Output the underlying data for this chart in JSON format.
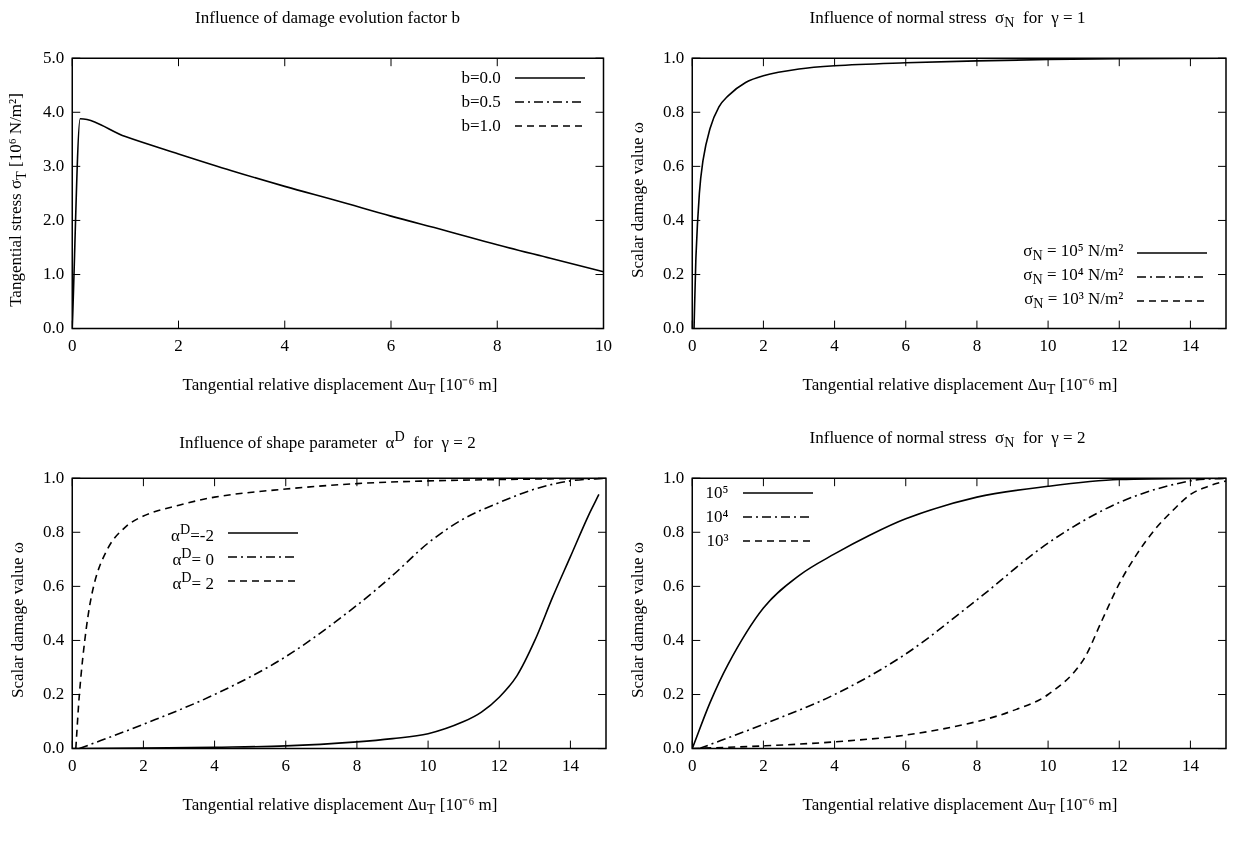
{
  "chart_data": [
    {
      "type": "line",
      "title": "Influence of damage evolution factor b",
      "xlabel": "Tangential relative displacement Δu$_{T}$ [10⁻⁶ m]",
      "ylabel": "Tangential stress σ$_{T}$ [10⁶ N/m²]",
      "xlim": [
        0,
        10
      ],
      "xticks": [
        0,
        2,
        4,
        6,
        8,
        10
      ],
      "ylim": [
        0,
        5
      ],
      "yticks": [
        {
          "value": 0,
          "label": "0.0"
        },
        {
          "value": 1,
          "label": "1.0"
        },
        {
          "value": 2,
          "label": "2.0"
        },
        {
          "value": 3,
          "label": "3.0"
        },
        {
          "value": 4,
          "label": "4.0"
        },
        {
          "value": 5,
          "label": "5.0"
        }
      ],
      "grid": false,
      "legend": "top right",
      "x": [
        0,
        0.15,
        1,
        2,
        3,
        4,
        5,
        6,
        7,
        8,
        9,
        10
      ],
      "series": [
        {
          "name": "b=0.0",
          "color": "#000000",
          "line_style": "solid",
          "values": [
            0,
            3.88,
            3.55,
            3.23,
            2.92,
            2.63,
            2.36,
            2.08,
            1.82,
            1.55,
            1.3,
            1.05
          ]
        },
        {
          "name": "b=0.5",
          "color": "#000000",
          "line_style": "dashdot",
          "values": [
            null,
            null,
            null,
            null,
            null,
            null,
            null,
            null,
            null,
            null,
            null,
            null
          ]
        },
        {
          "name": "b=1.0",
          "color": "#000000",
          "line_style": "dashed",
          "values": [
            null,
            null,
            null,
            null,
            null,
            null,
            null,
            null,
            null,
            null,
            null,
            null
          ]
        }
      ]
    },
    {
      "type": "line",
      "title": "Influence of normal stress  σ$_{N}$  for  γ = 1",
      "xlabel": "Tangential relative displacement Δu$_{T}$ [10⁻⁶ m]",
      "ylabel": "Scalar damage value ω",
      "xlim": [
        0,
        15
      ],
      "xticks": [
        0,
        2,
        4,
        6,
        8,
        10,
        12,
        14
      ],
      "ylim": [
        0,
        1
      ],
      "yticks": [
        {
          "value": 0,
          "label": "0.0"
        },
        {
          "value": 0.2,
          "label": "0.2"
        },
        {
          "value": 0.4,
          "label": "0.4"
        },
        {
          "value": 0.6,
          "label": "0.6"
        },
        {
          "value": 0.8,
          "label": "0.8"
        },
        {
          "value": 1,
          "label": "1.0"
        }
      ],
      "grid": false,
      "legend": "bottom right",
      "x": [
        0.05,
        0.1,
        0.2,
        0.3,
        0.5,
        0.75,
        1,
        1.5,
        2,
        3,
        4,
        6,
        8,
        10,
        12,
        15
      ],
      "series": [
        {
          "name": "σ$_{N}$ = 10⁵ N/m²",
          "color": "#000000",
          "line_style": "solid",
          "values": [
            0,
            0.25,
            0.5,
            0.62,
            0.74,
            0.82,
            0.86,
            0.91,
            0.935,
            0.96,
            0.972,
            0.983,
            0.99,
            0.995,
            0.998,
            1
          ]
        },
        {
          "name": "σ$_{N}$ = 10⁴ N/m²",
          "color": "#000000",
          "line_style": "dashdot",
          "values": [
            null,
            null,
            null,
            null,
            null,
            null,
            null,
            null,
            null,
            null,
            null,
            null,
            null,
            null,
            null,
            null
          ]
        },
        {
          "name": "σ$_{N}$ = 10³ N/m²",
          "color": "#000000",
          "line_style": "dashed",
          "values": [
            null,
            null,
            null,
            null,
            null,
            null,
            null,
            null,
            null,
            null,
            null,
            null,
            null,
            null,
            null,
            null
          ]
        }
      ]
    },
    {
      "type": "line",
      "title": "Influence of shape parameter  α$^{D}$  for  γ = 2",
      "xlabel": "Tangential relative displacement Δu$_{T}$ [10⁻⁶ m]",
      "ylabel": "Scalar damage value ω",
      "xlim": [
        0,
        15
      ],
      "xticks": [
        0,
        2,
        4,
        6,
        8,
        10,
        12,
        14
      ],
      "ylim": [
        0,
        1
      ],
      "yticks": [
        {
          "value": 0,
          "label": "0.0"
        },
        {
          "value": 0.2,
          "label": "0.2"
        },
        {
          "value": 0.4,
          "label": "0.4"
        },
        {
          "value": 0.6,
          "label": "0.6"
        },
        {
          "value": 0.8,
          "label": "0.8"
        },
        {
          "value": 1,
          "label": "1.0"
        }
      ],
      "grid": false,
      "legend": "top left",
      "series": [
        {
          "name": "α$^{D}$=-2",
          "color": "#000000",
          "line_style": "solid",
          "x": [
            0,
            2,
            4,
            6,
            8,
            9,
            10,
            11,
            11.5,
            12,
            12.5,
            13,
            13.5,
            14,
            14.5,
            14.8
          ],
          "values": [
            0,
            0.002,
            0.005,
            0.01,
            0.025,
            0.037,
            0.055,
            0.1,
            0.135,
            0.19,
            0.27,
            0.4,
            0.56,
            0.71,
            0.86,
            0.94
          ]
        },
        {
          "name": "α$^{D}$= 0",
          "color": "#000000",
          "line_style": "dashdot",
          "x": [
            0.2,
            2,
            4,
            6,
            8,
            9,
            10,
            11,
            12,
            13,
            14,
            15
          ],
          "values": [
            0,
            0.09,
            0.2,
            0.34,
            0.53,
            0.64,
            0.76,
            0.85,
            0.91,
            0.96,
            0.99,
            1
          ]
        },
        {
          "name": "α$^{D}$= 2",
          "color": "#000000",
          "line_style": "dashed",
          "x": [
            0.1,
            0.2,
            0.4,
            0.6,
            1,
            1.5,
            2,
            3,
            4,
            6,
            8,
            10,
            12,
            15
          ],
          "values": [
            0,
            0.2,
            0.45,
            0.6,
            0.74,
            0.82,
            0.86,
            0.9,
            0.93,
            0.96,
            0.98,
            0.99,
            0.995,
            1
          ]
        }
      ]
    },
    {
      "type": "line",
      "title": "Influence of normal stress  σ$_{N}$  for  γ = 2",
      "xlabel": "Tangential relative displacement Δu$_{T}$ [10⁻⁶ m]",
      "ylabel": "Scalar damage value ω",
      "xlim": [
        0,
        15
      ],
      "xticks": [
        0,
        2,
        4,
        6,
        8,
        10,
        12,
        14
      ],
      "ylim": [
        0,
        1
      ],
      "yticks": [
        {
          "value": 0,
          "label": "0.0"
        },
        {
          "value": 0.2,
          "label": "0.2"
        },
        {
          "value": 0.4,
          "label": "0.4"
        },
        {
          "value": 0.6,
          "label": "0.6"
        },
        {
          "value": 0.8,
          "label": "0.8"
        },
        {
          "value": 1,
          "label": "1.0"
        }
      ],
      "grid": false,
      "legend": "top left",
      "series": [
        {
          "name": "10⁵",
          "color": "#000000",
          "line_style": "solid",
          "x": [
            0,
            0.5,
            1,
            2,
            3,
            4,
            5,
            6,
            8,
            10,
            12,
            15
          ],
          "values": [
            0,
            0.17,
            0.31,
            0.52,
            0.64,
            0.72,
            0.79,
            0.85,
            0.93,
            0.97,
            0.995,
            1
          ]
        },
        {
          "name": "10⁴",
          "color": "#000000",
          "line_style": "dashdot",
          "x": [
            0.2,
            2,
            4,
            6,
            8,
            10,
            12,
            14,
            15
          ],
          "values": [
            0,
            0.09,
            0.2,
            0.35,
            0.55,
            0.76,
            0.91,
            0.99,
            1
          ]
        },
        {
          "name": "10³",
          "color": "#000000",
          "line_style": "dashed",
          "x": [
            0,
            2,
            4,
            6,
            8,
            9,
            10,
            11,
            11.5,
            12,
            12.5,
            13,
            13.5,
            14,
            14.5,
            15
          ],
          "values": [
            0,
            0.01,
            0.025,
            0.05,
            0.1,
            0.14,
            0.2,
            0.33,
            0.47,
            0.61,
            0.72,
            0.81,
            0.88,
            0.94,
            0.97,
            0.99
          ]
        }
      ]
    }
  ]
}
